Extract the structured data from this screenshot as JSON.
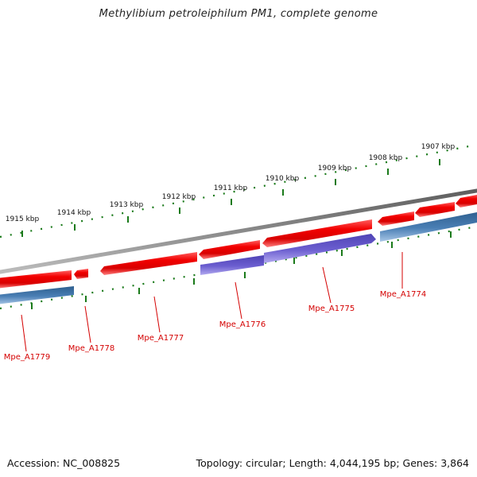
{
  "title": "Methylibium petroleiphilum PM1, complete genome",
  "footer": {
    "accession": "Accession: NC_008825",
    "summary": "Topology: circular; Length: 4,044,195 bp; Genes: 3,864"
  },
  "colors": {
    "backbone": "#808080",
    "forward_gene": "#e60000",
    "reverse_gene_blue": "#4a7fb5",
    "reverse_gene_purple": "#6c5fd0",
    "tick": "#1a7a1a",
    "gene_label": "#d40000",
    "kbp_label": "#111111"
  },
  "scale_labels": [
    "1907 kbp",
    "1908 kbp",
    "1909 kbp",
    "1910 kbp",
    "1911 kbp",
    "1912 kbp",
    "1913 kbp",
    "1914 kbp",
    "1915 kbp"
  ],
  "gene_labels": [
    "Mpe_A1774",
    "Mpe_A1775",
    "Mpe_A1776",
    "Mpe_A1777",
    "Mpe_A1778",
    "Mpe_A1779"
  ]
}
